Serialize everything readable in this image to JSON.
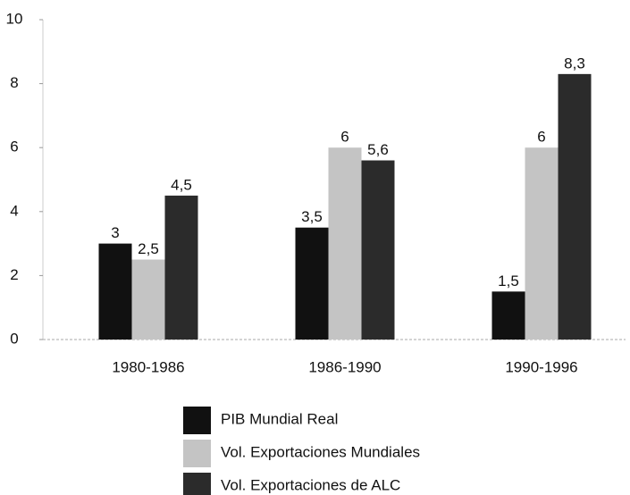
{
  "chart_data": {
    "type": "bar",
    "categories": [
      "1980-1986",
      "1986-1990",
      "1990-1996"
    ],
    "series": [
      {
        "name": "PIB Mundial Real",
        "color": "#111111",
        "values": [
          3,
          3.5,
          1.5
        ],
        "value_labels": [
          "3",
          "3,5",
          "1,5"
        ]
      },
      {
        "name": "Vol. Exportaciones Mundiales",
        "color": "#c4c4c4",
        "values": [
          2.5,
          6,
          6
        ],
        "value_labels": [
          "2,5",
          "6",
          "6"
        ]
      },
      {
        "name": "Vol. Exportaciones de ALC",
        "color": "#2b2b2b",
        "values": [
          4.5,
          5.6,
          8.3
        ],
        "value_labels": [
          "4,5",
          "5,6",
          "8,3"
        ]
      }
    ],
    "ylim": [
      0,
      10
    ],
    "yticks": [
      0,
      2,
      4,
      6,
      8,
      10
    ]
  }
}
